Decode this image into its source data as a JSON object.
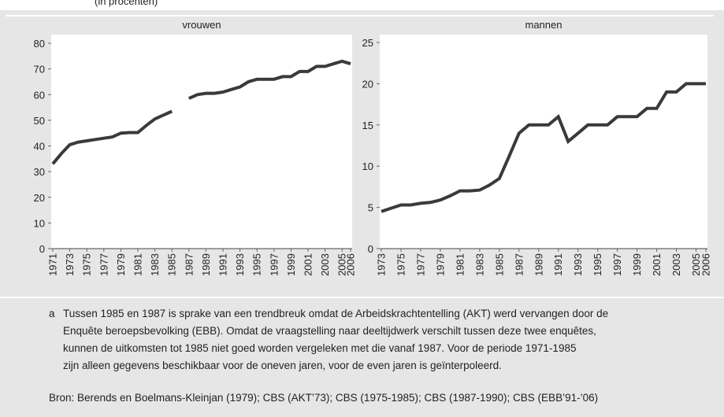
{
  "header": "(in procenten)",
  "chart_data": [
    {
      "type": "line",
      "title": "vrouwen",
      "color": "#3a3a3a",
      "x": [
        1971,
        1972,
        1973,
        1974,
        1975,
        1976,
        1977,
        1978,
        1979,
        1980,
        1981,
        1982,
        1983,
        1984,
        1985,
        1986,
        1987,
        1988,
        1989,
        1990,
        1991,
        1992,
        1993,
        1994,
        1995,
        1996,
        1997,
        1998,
        1999,
        2000,
        2001,
        2002,
        2003,
        2004,
        2005,
        2006
      ],
      "values": [
        33,
        37,
        40.5,
        41.5,
        42,
        42.5,
        43,
        43.5,
        45,
        45.2,
        45.2,
        48,
        50.5,
        52,
        53.5,
        null,
        58.5,
        60,
        60.5,
        60.5,
        61,
        62,
        63,
        65,
        66,
        66,
        66,
        67,
        67,
        69,
        69,
        71,
        71,
        72,
        73,
        72
      ],
      "xlim": [
        1971,
        2006
      ],
      "xticks": [
        1971,
        1973,
        1975,
        1977,
        1979,
        1981,
        1983,
        1985,
        1987,
        1989,
        1991,
        1993,
        1995,
        1997,
        1999,
        2001,
        2003,
        2005,
        2006
      ],
      "ylim": [
        0,
        80
      ],
      "yticks": [
        0,
        10,
        20,
        30,
        40,
        50,
        60,
        70,
        80
      ],
      "grid": false
    },
    {
      "type": "line",
      "title": "mannen",
      "color": "#3a3a3a",
      "x": [
        1973,
        1974,
        1975,
        1976,
        1977,
        1978,
        1979,
        1980,
        1981,
        1982,
        1983,
        1984,
        1985,
        1986,
        1987,
        1988,
        1989,
        1990,
        1991,
        1992,
        1993,
        1994,
        1995,
        1996,
        1997,
        1998,
        1999,
        2000,
        2001,
        2002,
        2003,
        2004,
        2005,
        2006
      ],
      "values": [
        4.5,
        4.9,
        5.3,
        5.3,
        5.5,
        5.6,
        5.9,
        6.4,
        7,
        7,
        7.1,
        7.7,
        8.5,
        11.2,
        14,
        15,
        15,
        15,
        16,
        13,
        14,
        15,
        15,
        15,
        16,
        16,
        16,
        17,
        17,
        19,
        19,
        20,
        20,
        20
      ],
      "xlim": [
        1973,
        2006
      ],
      "xticks": [
        1973,
        1975,
        1977,
        1979,
        1981,
        1983,
        1985,
        1987,
        1989,
        1991,
        1993,
        1995,
        1997,
        1999,
        2001,
        2003,
        2005,
        2006
      ],
      "ylim": [
        0,
        25
      ],
      "yticks": [
        0,
        5,
        10,
        15,
        20,
        25
      ],
      "grid": false
    }
  ],
  "footnote": {
    "marker": "a",
    "lines": [
      "Tussen 1985 en 1987 is sprake van een trendbreuk omdat de Arbeidskrachtentelling (AKT) werd vervangen door de",
      "Enquête beroepsbevolking (EBB). Omdat de vraagstelling naar deeltijdwerk verschilt tussen deze twee enquêtes,",
      "kunnen de uitkomsten tot 1985 niet goed worden vergeleken met die vanaf 1987. Voor de periode 1971-1985",
      "zijn alleen gegevens beschikbaar voor de oneven jaren, voor de even jaren is geïnterpoleerd."
    ]
  },
  "source": "Bron: Berends en Boelmans-Kleinjan (1979); CBS (AKT’73); CBS (1975-1985); CBS (1987-1990); CBS (EBB’91-’06)"
}
